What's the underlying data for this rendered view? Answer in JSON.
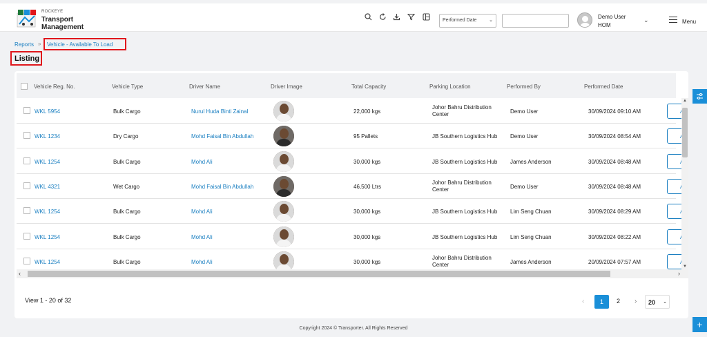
{
  "app": {
    "brand_small": "ROCKEYE",
    "brand_line1": "Transport",
    "brand_line2": "Management"
  },
  "toolbar": {
    "icons": [
      "search-icon",
      "refresh-icon",
      "download-icon",
      "filter-icon",
      "columns-icon"
    ],
    "date_select": "Performed Date",
    "search_value": ""
  },
  "user": {
    "name": "Demo User",
    "role": "HOM"
  },
  "menu_label": "Menu",
  "breadcrumb": {
    "root": "Reports",
    "separator": "»",
    "current": "Vehicle - Available To Load"
  },
  "page_title": "Listing",
  "table": {
    "headers": [
      "Vehicle Reg. No.",
      "Vehicle Type",
      "Driver Name",
      "Driver Image",
      "Total Capacity",
      "Parking Location",
      "Performed By",
      "Performed Date"
    ],
    "rows": [
      {
        "reg": "WKL 5954",
        "type": "Bulk Cargo",
        "driver": "Nurul Huda Binti Zainal",
        "capacity": "22,000 kgs",
        "loc1": "Johor Bahru Distribution",
        "loc2": "Center",
        "by": "Demo User",
        "date": "30/09/2024 09:10 AM",
        "action": "A"
      },
      {
        "reg": "WKL 1234",
        "type": "Dry Cargo",
        "driver": "Mohd Faisal Bin Abdullah",
        "capacity": "95 Pallets",
        "loc1": "JB Southern Logistics Hub",
        "loc2": "",
        "by": "Demo User",
        "date": "30/09/2024 08:54 AM",
        "action": "A"
      },
      {
        "reg": "WKL 1254",
        "type": "Bulk Cargo",
        "driver": "Mohd Ali",
        "capacity": "30,000 kgs",
        "loc1": "JB Southern Logistics Hub",
        "loc2": "",
        "by": "James Anderson",
        "date": "30/09/2024 08:48 AM",
        "action": "A"
      },
      {
        "reg": "WKL 4321",
        "type": "Wet Cargo",
        "driver": "Mohd Faisal Bin Abdullah",
        "capacity": "46,500 Ltrs",
        "loc1": "Johor Bahru Distribution",
        "loc2": "Center",
        "by": "Demo User",
        "date": "30/09/2024 08:48 AM",
        "action": "A"
      },
      {
        "reg": "WKL 1254",
        "type": "Bulk Cargo",
        "driver": "Mohd Ali",
        "capacity": "30,000 kgs",
        "loc1": "JB Southern Logistics Hub",
        "loc2": "",
        "by": "Lim Seng Chuan",
        "date": "30/09/2024 08:29 AM",
        "action": "A"
      },
      {
        "reg": "WKL 1254",
        "type": "Bulk Cargo",
        "driver": "Mohd Ali",
        "capacity": "30,000 kgs",
        "loc1": "JB Southern Logistics Hub",
        "loc2": "",
        "by": "Lim Seng Chuan",
        "date": "30/09/2024 08:22 AM",
        "action": "A"
      },
      {
        "reg": "WKL 1254",
        "type": "Bulk Cargo",
        "driver": "Mohd Ali",
        "capacity": "30,000 kgs",
        "loc1": "Johor Bahru Distribution",
        "loc2": "Center",
        "by": "James Anderson",
        "date": "20/09/2024 07:57 AM",
        "action": "A"
      }
    ]
  },
  "pagination": {
    "view_text": "View 1 - 20 of 32",
    "page_1": "1",
    "page_2": "2",
    "page_size": "20"
  },
  "footer": "Copyright 2024 © Transporter. All Rights Reserved",
  "colors": {
    "accent": "#1a8fd8",
    "link": "#1a7fc1",
    "highlight": "#e0161b"
  }
}
